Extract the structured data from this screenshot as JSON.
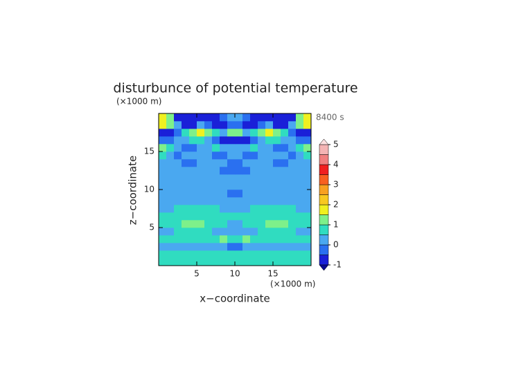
{
  "chart_data": {
    "type": "contour",
    "title": "disturbunce of potential temperature",
    "time_label": "8400 s",
    "x_label": "x−coordinate",
    "y_label": "z−coordinate",
    "x_unit": "(×1000 m)",
    "y_unit": "(×1000 m)",
    "xlim": [
      0,
      20
    ],
    "ylim": [
      0,
      20
    ],
    "xticks": [
      5,
      10,
      15
    ],
    "yticks": [
      5,
      10,
      15
    ],
    "x": [
      0.5,
      1.5,
      2.5,
      3.5,
      4.5,
      5.5,
      6.5,
      7.5,
      8.5,
      9.5,
      10.5,
      11.5,
      12.5,
      13.5,
      14.5,
      15.5,
      16.5,
      17.5,
      18.5,
      19.5
    ],
    "z": [
      0.5,
      1.5,
      2.5,
      3.5,
      4.5,
      5.5,
      6.5,
      7.5,
      8.5,
      9.5,
      10.5,
      11.5,
      12.5,
      13.5,
      14.5,
      15.5,
      16.5,
      17.5,
      18.5,
      19.5
    ],
    "values": [
      [
        0.7,
        0.7,
        0.8,
        0.8,
        0.8,
        0.7,
        0.7,
        0.7,
        0.6,
        0.6,
        0.6,
        0.6,
        0.7,
        0.7,
        0.7,
        0.8,
        0.8,
        0.8,
        0.7,
        0.7
      ],
      [
        0.6,
        0.6,
        0.6,
        0.6,
        0.6,
        0.6,
        0.6,
        0.6,
        0.7,
        0.8,
        0.8,
        0.7,
        0.6,
        0.6,
        0.6,
        0.6,
        0.6,
        0.6,
        0.6,
        0.6
      ],
      [
        0.3,
        0.3,
        0.4,
        0.4,
        0.3,
        0.3,
        0.2,
        0.2,
        0.1,
        -0.1,
        -0.1,
        0.1,
        0.2,
        0.2,
        0.3,
        0.3,
        0.4,
        0.4,
        0.3,
        0.3
      ],
      [
        0.6,
        0.6,
        0.6,
        0.6,
        0.7,
        0.7,
        0.6,
        0.8,
        1.1,
        0.6,
        0.6,
        1.1,
        0.8,
        0.6,
        0.7,
        0.7,
        0.6,
        0.6,
        0.6,
        0.6
      ],
      [
        0.3,
        0.3,
        0.6,
        0.6,
        0.6,
        0.6,
        0.6,
        0.3,
        0.3,
        0.2,
        0.2,
        0.3,
        0.3,
        0.6,
        0.6,
        0.6,
        0.6,
        0.6,
        0.3,
        0.3
      ],
      [
        0.6,
        0.6,
        0.7,
        1.1,
        1.2,
        1.1,
        0.7,
        0.6,
        0.6,
        0.3,
        0.3,
        0.6,
        0.6,
        0.7,
        1.1,
        1.2,
        1.1,
        0.7,
        0.6,
        0.6
      ],
      [
        0.6,
        0.6,
        0.6,
        0.6,
        0.6,
        0.7,
        0.7,
        0.6,
        0.6,
        0.6,
        0.6,
        0.6,
        0.6,
        0.7,
        0.7,
        0.6,
        0.6,
        0.6,
        0.6,
        0.6
      ],
      [
        0.2,
        0.3,
        0.6,
        0.6,
        0.6,
        0.6,
        0.6,
        0.6,
        0.3,
        0.2,
        0.2,
        0.3,
        0.6,
        0.6,
        0.6,
        0.6,
        0.6,
        0.6,
        0.3,
        0.2
      ],
      [
        0.2,
        0.2,
        0.2,
        0.2,
        0.2,
        0.2,
        0.2,
        0.2,
        0.2,
        0.2,
        0.2,
        0.2,
        0.2,
        0.2,
        0.2,
        0.2,
        0.2,
        0.2,
        0.2,
        0.2
      ],
      [
        0.2,
        0.2,
        0.2,
        0.2,
        0.2,
        0.2,
        0.2,
        0.2,
        0.2,
        -0.1,
        -0.1,
        0.2,
        0.2,
        0.2,
        0.2,
        0.2,
        0.2,
        0.2,
        0.2,
        0.2
      ],
      [
        0.2,
        0.2,
        0.2,
        0.2,
        0.2,
        0.2,
        0.2,
        0.2,
        0.2,
        0.2,
        0.2,
        0.2,
        0.2,
        0.2,
        0.2,
        0.2,
        0.2,
        0.2,
        0.2,
        0.2
      ],
      [
        0.2,
        0.2,
        0.2,
        0.2,
        0.2,
        0.2,
        0.2,
        0.2,
        0.2,
        0.1,
        0.1,
        0.2,
        0.2,
        0.2,
        0.2,
        0.2,
        0.2,
        0.2,
        0.2,
        0.2
      ],
      [
        0.3,
        0.3,
        0.2,
        0.2,
        0.2,
        0.2,
        0.2,
        0.2,
        -0.2,
        -0.2,
        -0.2,
        -0.2,
        0.2,
        0.2,
        0.2,
        0.2,
        0.2,
        0.2,
        0.3,
        0.3
      ],
      [
        0.3,
        0.3,
        0.2,
        -0.2,
        -0.2,
        0.2,
        0.2,
        0.2,
        0.2,
        -0.2,
        -0.2,
        0.2,
        0.2,
        0.2,
        0.2,
        -0.2,
        -0.2,
        0.2,
        0.3,
        0.3
      ],
      [
        0.6,
        0.3,
        -0.2,
        0.2,
        0.3,
        0.3,
        0.2,
        -0.2,
        -0.2,
        0.2,
        0.2,
        -0.2,
        -0.2,
        0.2,
        0.3,
        0.3,
        0.2,
        -0.2,
        0.3,
        0.6
      ],
      [
        1.2,
        0.7,
        0.3,
        -0.2,
        -0.2,
        0.2,
        0.3,
        0.6,
        0.3,
        0.2,
        0.2,
        0.3,
        0.6,
        0.3,
        0.2,
        -0.2,
        -0.2,
        0.3,
        0.7,
        1.2
      ],
      [
        -0.2,
        -0.2,
        0.2,
        0.3,
        0.6,
        0.6,
        0.3,
        -0.2,
        -0.6,
        -0.6,
        -0.6,
        -0.6,
        -0.2,
        0.3,
        0.6,
        0.6,
        0.3,
        0.2,
        -0.2,
        -0.2
      ],
      [
        -0.6,
        -0.6,
        -0.2,
        0.6,
        1.2,
        1.6,
        1.2,
        0.6,
        0.3,
        1.2,
        1.2,
        0.3,
        0.6,
        1.2,
        1.6,
        1.2,
        0.6,
        -0.2,
        -0.6,
        -0.6
      ],
      [
        1.6,
        1.2,
        0.3,
        -0.6,
        -0.6,
        0.2,
        -0.2,
        -0.6,
        -0.6,
        -0.2,
        -0.2,
        -0.6,
        -0.6,
        -0.2,
        0.2,
        -0.6,
        -0.6,
        0.3,
        1.2,
        1.6
      ],
      [
        1.6,
        1.2,
        -0.6,
        -0.6,
        -0.6,
        -0.6,
        -0.6,
        -0.6,
        -0.2,
        0.3,
        0.3,
        -0.2,
        -0.6,
        -0.6,
        -0.6,
        -0.6,
        -0.6,
        -0.6,
        1.2,
        1.6
      ]
    ],
    "colorbar": {
      "levels": [
        -1,
        -0.5,
        0,
        0.5,
        1,
        1.5,
        2,
        2.5,
        3,
        3.5,
        4,
        4.5,
        5
      ],
      "colors": [
        "#1a20d8",
        "#2a70f0",
        "#4aa8f0",
        "#30dcc0",
        "#7ef08a",
        "#f0f020",
        "#f8c820",
        "#f8a020",
        "#f86020",
        "#f02020",
        "#f08080",
        "#f4b4b4"
      ],
      "under_color": "#0a0a90",
      "over_color": "#fde0e0",
      "ticks": [
        -1,
        0,
        1,
        2,
        3,
        4,
        5
      ]
    }
  }
}
